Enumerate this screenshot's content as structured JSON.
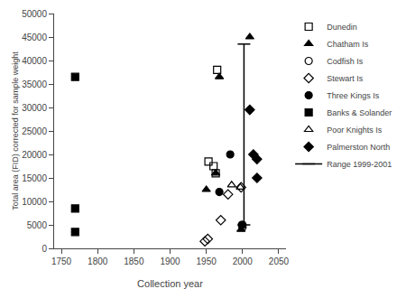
{
  "chart_data": {
    "type": "scatter",
    "xlabel": "Collection year",
    "ylabel": "Total area (FID) corrected for sample weight",
    "xlim": [
      1740,
      2060
    ],
    "ylim": [
      0,
      50000
    ],
    "xticks": [
      1750,
      1800,
      1850,
      1900,
      1950,
      2000,
      2050
    ],
    "yticks": [
      0,
      5000,
      10000,
      15000,
      20000,
      25000,
      30000,
      35000,
      40000,
      45000,
      50000
    ],
    "grid": false,
    "legend": "right",
    "series": [
      {
        "name": "Dunedin",
        "color": "black",
        "marker": "square-open",
        "x": [
          1953,
          1960,
          1963,
          1965
        ],
        "values": [
          18500,
          17500,
          16000,
          38000
        ]
      },
      {
        "name": "Chatham Is",
        "color": "black",
        "marker": "triangle-up",
        "x": [
          1950,
          1963,
          1968,
          1998,
          2010
        ],
        "values": [
          12500,
          16000,
          36500,
          4000,
          45000
        ]
      },
      {
        "name": "Codfish Is",
        "color": "black",
        "marker": "circle-open",
        "x": [
          1999,
          2000
        ],
        "values": [
          5000,
          4500
        ]
      },
      {
        "name": "Stewart Is",
        "color": "black",
        "marker": "diamond-open",
        "x": [
          1948,
          1952,
          1970,
          1980,
          1998
        ],
        "values": [
          1500,
          2000,
          6000,
          11500,
          13000
        ]
      },
      {
        "name": "Three Kings Is",
        "color": "black",
        "marker": "circle",
        "x": [
          1968,
          1983,
          2000
        ],
        "values": [
          12000,
          20000,
          5000
        ]
      },
      {
        "name": "Banks & Solander",
        "color": "black",
        "marker": "square",
        "x": [
          1769,
          1769,
          1769
        ],
        "values": [
          36500,
          8500,
          3500
        ]
      },
      {
        "name": "Poor Knights Is",
        "color": "black",
        "marker": "triangle-up-open",
        "x": [
          1985,
          1997
        ],
        "values": [
          13500,
          13000
        ]
      },
      {
        "name": "Palmerston North",
        "color": "black",
        "marker": "diamond",
        "x": [
          2010,
          2015,
          2020,
          2020
        ],
        "values": [
          29500,
          20000,
          19000,
          15000
        ]
      },
      {
        "name": "Range 1999-2001",
        "type": "line",
        "color": "black",
        "marker": "line-ew-open",
        "line_style": "solid",
        "x": [
          2002,
          2002
        ],
        "values": [
          5000,
          43500
        ]
      }
    ]
  }
}
